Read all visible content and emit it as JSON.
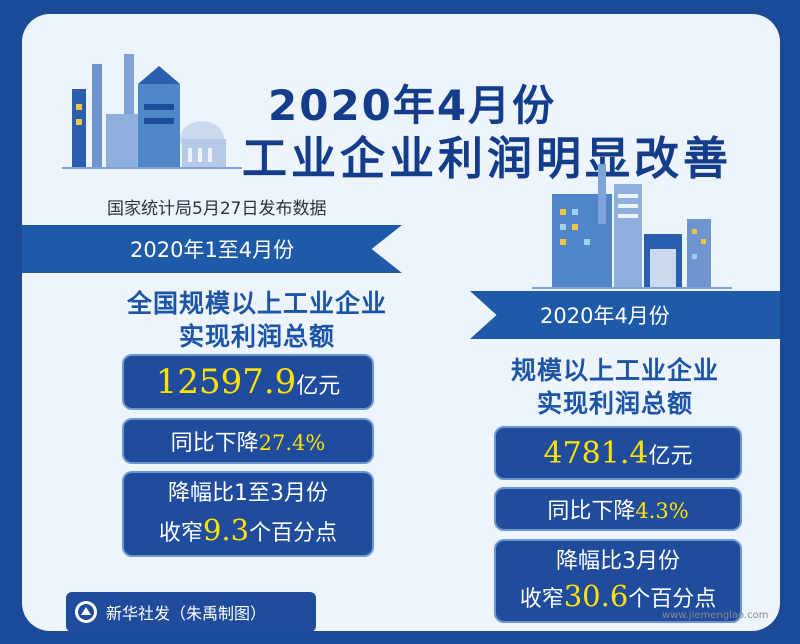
{
  "title": {
    "line1": "2020年4月份",
    "line2": "工业企业利润明显改善"
  },
  "source": "国家统计局5月27日发布数据",
  "left": {
    "period": "2020年1至4月份",
    "heading_line1": "全国规模以上工业企业",
    "heading_line2": "实现利润总额",
    "total_value": "12597.9",
    "total_unit": "亿元",
    "yoy_prefix": "同比下降",
    "yoy_value": "27.4%",
    "narrow_line1": "降幅比1至3月份",
    "narrow_prefix": "收窄",
    "narrow_value": "9.3",
    "narrow_unit": "个百分点"
  },
  "right": {
    "period": "2020年4月份",
    "heading_line1": "规模以上工业企业",
    "heading_line2": "实现利润总额",
    "total_value": "4781.4",
    "total_unit": "亿元",
    "yoy_prefix": "同比下降",
    "yoy_value": "4.3%",
    "narrow_line1": "降幅比3月份",
    "narrow_prefix": "收窄",
    "narrow_value": "30.6",
    "narrow_unit": "个百分点"
  },
  "credit": "新华社发（朱禹制图）",
  "watermark": "www.jiemenglao.com",
  "icons": [
    "factory-illustration-left-icon",
    "factory-illustration-right-icon",
    "xinhua-logo-icon"
  ],
  "colors": {
    "frame": "#1b4a98",
    "card": "#eef4fb",
    "title": "#133c8a",
    "ribbon": "#1f5aa9",
    "box": "#1f4c9c",
    "highlight": "#ffe100"
  }
}
